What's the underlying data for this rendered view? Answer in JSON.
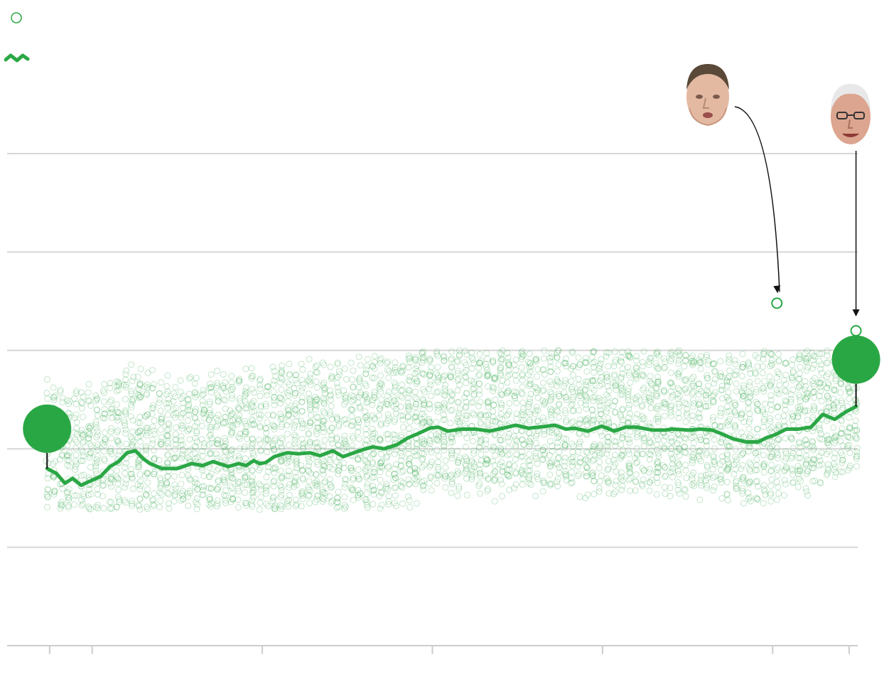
{
  "colors": {
    "accent": "#2aa745",
    "member_dot": "#2aa745",
    "grid": "#d6d6d6",
    "axis": "#cccccc",
    "arrow": "#111111"
  },
  "legend": {
    "member_icon": "hollow-circle-icon",
    "average_icon": "line-squiggle-icon"
  },
  "annotations": [
    {
      "icon": "senator-face-portrait",
      "points_to": "oldest-member-dot-2013"
    },
    {
      "icon": "senator-face-portrait",
      "points_to": "oldest-member-dot-2023"
    }
  ],
  "chart_data": {
    "type": "scatter",
    "grid": true,
    "gridline_values": [
      0,
      1,
      2,
      3,
      4,
      5
    ],
    "ylim": [
      0,
      5
    ],
    "xlim": [
      0,
      1
    ],
    "x_ticks": [
      0.05,
      0.1,
      0.3,
      0.5,
      0.7,
      0.9,
      0.99
    ],
    "average_series": {
      "x": [
        0.047,
        0.058,
        0.068,
        0.077,
        0.087,
        0.097,
        0.11,
        0.121,
        0.131,
        0.141,
        0.151,
        0.16,
        0.168,
        0.182,
        0.2,
        0.217,
        0.23,
        0.242,
        0.26,
        0.272,
        0.281,
        0.29,
        0.297,
        0.304,
        0.314,
        0.329,
        0.343,
        0.356,
        0.368,
        0.383,
        0.395,
        0.414,
        0.43,
        0.443,
        0.458,
        0.471,
        0.482,
        0.497,
        0.507,
        0.518,
        0.535,
        0.551,
        0.567,
        0.583,
        0.598,
        0.613,
        0.625,
        0.644,
        0.657,
        0.667,
        0.683,
        0.699,
        0.708,
        0.714,
        0.727,
        0.74,
        0.759,
        0.773,
        0.783,
        0.802,
        0.815,
        0.829,
        0.838,
        0.854,
        0.869,
        0.883,
        0.892,
        0.902,
        0.916,
        0.93,
        0.945,
        0.959,
        0.973,
        0.987,
        0.998
      ],
      "y": [
        1.8,
        1.75,
        1.65,
        1.7,
        1.63,
        1.67,
        1.72,
        1.82,
        1.87,
        1.96,
        1.98,
        1.9,
        1.85,
        1.8,
        1.8,
        1.85,
        1.83,
        1.87,
        1.82,
        1.85,
        1.83,
        1.88,
        1.85,
        1.86,
        1.92,
        1.96,
        1.95,
        1.96,
        1.93,
        1.98,
        1.92,
        1.98,
        2.02,
        2.0,
        2.04,
        2.11,
        2.15,
        2.21,
        2.22,
        2.18,
        2.2,
        2.2,
        2.18,
        2.21,
        2.24,
        2.21,
        2.22,
        2.24,
        2.2,
        2.21,
        2.18,
        2.23,
        2.2,
        2.18,
        2.22,
        2.22,
        2.19,
        2.19,
        2.2,
        2.19,
        2.2,
        2.19,
        2.16,
        2.1,
        2.07,
        2.07,
        2.11,
        2.14,
        2.2,
        2.2,
        2.22,
        2.35,
        2.3,
        2.38,
        2.43
      ]
    },
    "members": {
      "x_range": [
        0.047,
        0.998
      ],
      "y_range": [
        1.4,
        2.8
      ],
      "count_per_cohort": "many"
    },
    "highlights": [
      {
        "x": 0.047,
        "y": 1.8,
        "size": "large"
      },
      {
        "x": 0.998,
        "y": 2.43,
        "size": "large"
      },
      {
        "x": 0.905,
        "y": 3.48,
        "size": "small"
      },
      {
        "x": 0.998,
        "y": 3.2,
        "size": "small"
      }
    ]
  }
}
